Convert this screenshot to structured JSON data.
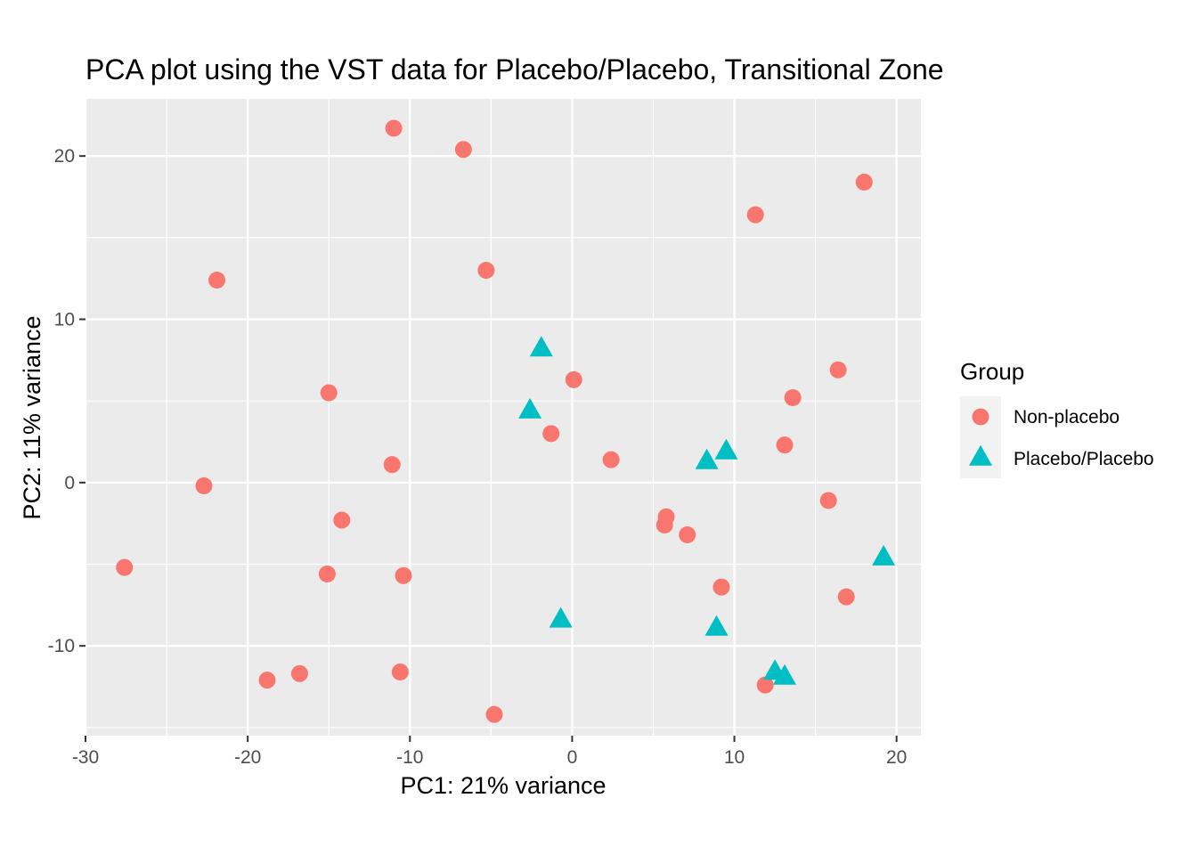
{
  "chart_data": {
    "type": "scatter",
    "title": "PCA plot using the VST data for Placebo/Placebo, Transitional Zone",
    "xlabel": "PC1: 21% variance",
    "ylabel": "PC2: 11% variance",
    "xlim": [
      -30,
      21.5
    ],
    "ylim": [
      -15.5,
      23.5
    ],
    "xticks": [
      -30,
      -20,
      -10,
      0,
      10,
      20
    ],
    "xtick_labels": [
      "-30",
      "-20",
      "-10",
      "0",
      "10",
      "20"
    ],
    "yticks": [
      -10,
      0,
      10,
      20
    ],
    "ytick_labels": [
      "-10",
      "0",
      "10",
      "20"
    ],
    "grid": true,
    "legend": {
      "title": "Group",
      "position": "right"
    },
    "series": [
      {
        "name": "Non-placebo",
        "color": "#F8766D",
        "marker": "circle",
        "points": [
          [
            -11.0,
            21.7
          ],
          [
            -6.7,
            20.4
          ],
          [
            18.0,
            18.4
          ],
          [
            11.3,
            16.4
          ],
          [
            -21.9,
            12.4
          ],
          [
            -5.3,
            13.0
          ],
          [
            0.1,
            6.3
          ],
          [
            16.4,
            6.9
          ],
          [
            -15.0,
            5.5
          ],
          [
            13.6,
            5.2
          ],
          [
            -1.3,
            3.0
          ],
          [
            13.1,
            2.3
          ],
          [
            2.4,
            1.4
          ],
          [
            -11.1,
            1.1
          ],
          [
            -22.7,
            -0.2
          ],
          [
            15.8,
            -1.1
          ],
          [
            5.8,
            -2.1
          ],
          [
            -14.2,
            -2.3
          ],
          [
            5.7,
            -2.6
          ],
          [
            7.1,
            -3.2
          ],
          [
            -27.6,
            -5.2
          ],
          [
            -15.1,
            -5.6
          ],
          [
            -10.4,
            -5.7
          ],
          [
            9.2,
            -6.4
          ],
          [
            16.9,
            -7.0
          ],
          [
            -18.8,
            -12.1
          ],
          [
            -16.8,
            -11.7
          ],
          [
            -10.6,
            -11.6
          ],
          [
            11.9,
            -12.4
          ],
          [
            -4.8,
            -14.2
          ]
        ]
      },
      {
        "name": "Placebo/Placebo",
        "color": "#00BFC4",
        "marker": "triangle",
        "points": [
          [
            -1.9,
            8.2
          ],
          [
            -2.6,
            4.4
          ],
          [
            9.5,
            1.9
          ],
          [
            8.3,
            1.3
          ],
          [
            19.2,
            -4.6
          ],
          [
            -0.7,
            -8.4
          ],
          [
            8.9,
            -8.9
          ],
          [
            12.5,
            -11.6
          ],
          [
            13.1,
            -11.9
          ]
        ]
      }
    ]
  }
}
